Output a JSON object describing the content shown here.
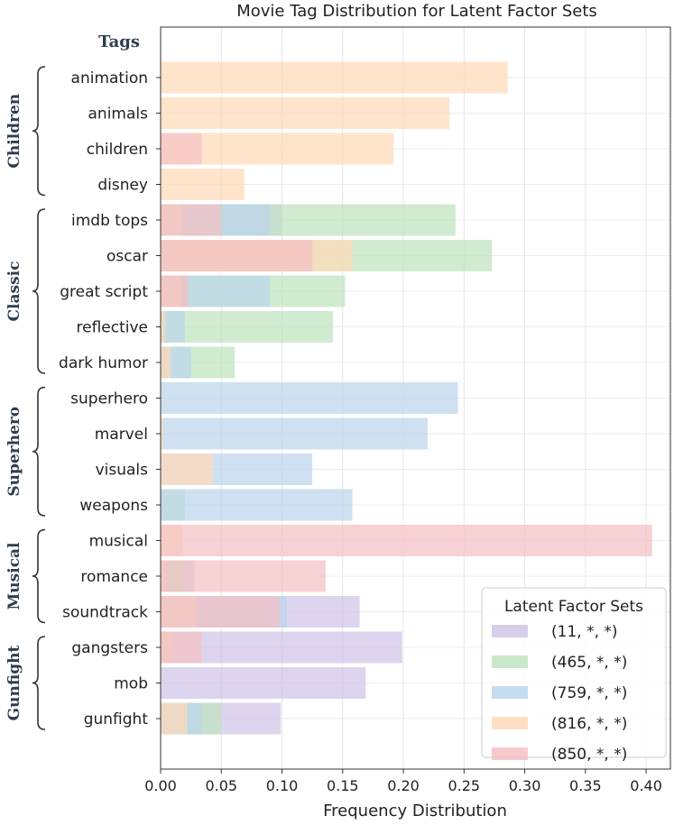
{
  "chart_data": {
    "type": "bar",
    "orientation": "horizontal",
    "title": "Movie Tag Distribution for Latent Factor Sets",
    "xlabel": "Frequency Distribution",
    "ylabel": "Tags",
    "xlim": [
      0,
      0.42
    ],
    "xticks": [
      "0.00",
      "0.05",
      "0.10",
      "0.15",
      "0.20",
      "0.25",
      "0.30",
      "0.35",
      "0.40"
    ],
    "grid": true,
    "legend_title": "Latent Factor Sets",
    "legend_position": "bottom-right",
    "categories": [
      "animation",
      "animals",
      "children",
      "disney",
      "imdb tops",
      "oscar",
      "great script",
      "reflective",
      "dark humor",
      "superhero",
      "marvel",
      "visuals",
      "weapons",
      "musical",
      "romance",
      "soundtrack",
      "gangsters",
      "mob",
      "gunfight"
    ],
    "groups": [
      {
        "name": "Children",
        "tags": [
          "animation",
          "animals",
          "children",
          "disney"
        ]
      },
      {
        "name": "Classic",
        "tags": [
          "imdb tops",
          "oscar",
          "great script",
          "reflective",
          "dark humor"
        ]
      },
      {
        "name": "Superhero",
        "tags": [
          "superhero",
          "marvel",
          "visuals",
          "weapons"
        ]
      },
      {
        "name": "Musical",
        "tags": [
          "musical",
          "romance",
          "soundtrack"
        ]
      },
      {
        "name": "Gunfight",
        "tags": [
          "gangsters",
          "mob",
          "gunfight"
        ]
      }
    ],
    "series": [
      {
        "name": "(11, *, *)",
        "color": "#cfc5e6",
        "values": [
          0,
          0,
          0,
          0,
          0.1,
          0.008,
          0.022,
          0,
          0.006,
          0,
          0,
          0,
          0,
          0,
          0.028,
          0.164,
          0.199,
          0.169,
          0.099
        ]
      },
      {
        "name": "(465, *, *)",
        "color": "#bfe3bf",
        "values": [
          0,
          0,
          0,
          0,
          0.243,
          0.273,
          0.152,
          0.142,
          0.061,
          0,
          0,
          0,
          0.02,
          0,
          0.02,
          0.03,
          0.01,
          0,
          0.05
        ]
      },
      {
        "name": "(759, *, *)",
        "color": "#bcd6ec",
        "values": [
          0,
          0,
          0,
          0,
          0.09,
          0.006,
          0.09,
          0.02,
          0.025,
          0.245,
          0.22,
          0.125,
          0.158,
          0,
          0,
          0.104,
          0,
          0,
          0.034
        ]
      },
      {
        "name": "(816, *, *)",
        "color": "#ffd9b8",
        "values": [
          0.286,
          0.238,
          0.192,
          0.069,
          0.018,
          0.158,
          0.017,
          0.004,
          0.008,
          0,
          0.002,
          0.043,
          0,
          0.018,
          0.005,
          0.03,
          0.01,
          0,
          0.022
        ]
      },
      {
        "name": "(850, *, *)",
        "color": "#f4c1c3",
        "values": [
          0,
          0,
          0.034,
          0,
          0.05,
          0.125,
          0.023,
          0,
          0,
          0,
          0,
          0,
          0,
          0.405,
          0.136,
          0.098,
          0.034,
          0,
          0
        ]
      }
    ]
  }
}
